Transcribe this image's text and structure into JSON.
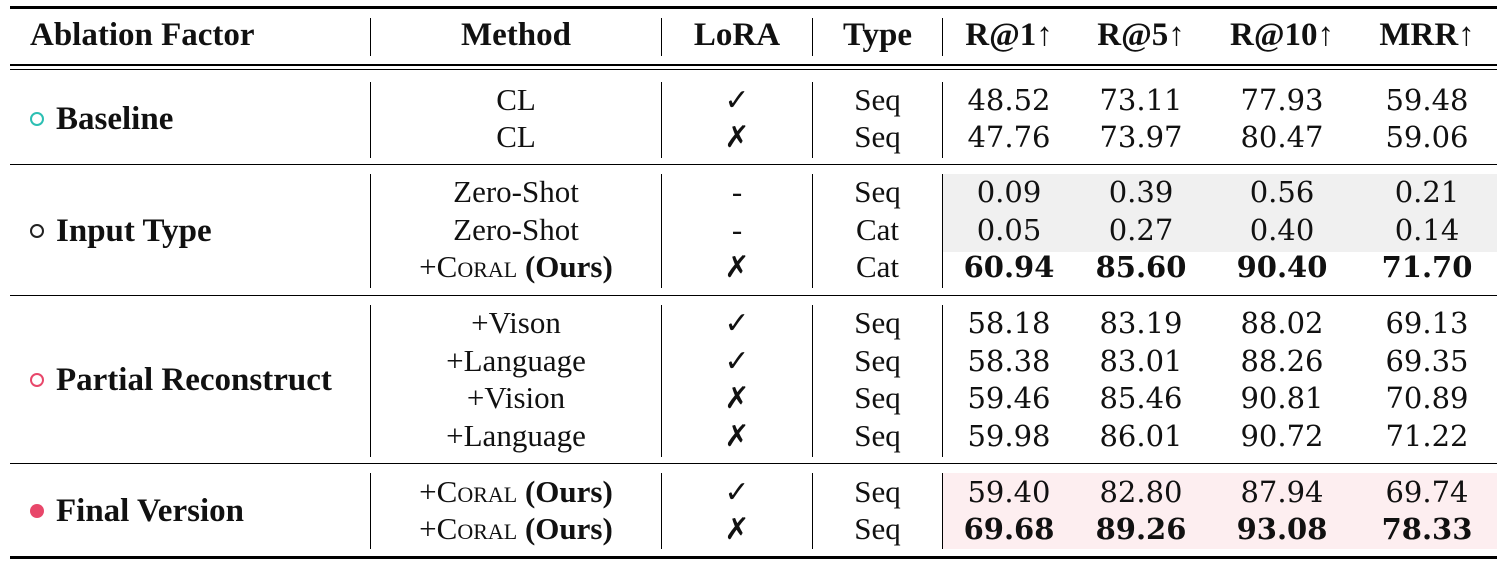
{
  "headers": {
    "factor": "Ablation Factor",
    "method": "Method",
    "lora": "LoRA",
    "type": "Type",
    "r1": "R@1↑",
    "r5": "R@5↑",
    "r10": "R@10↑",
    "mrr": "MRR↑"
  },
  "colors": {
    "baseline": "#2cbfb3",
    "input_type": "#222222",
    "partial": "#e8476a",
    "final": "#e8476a",
    "gray_shade": "#f0f0f0",
    "pink_shade": "#fdeef0"
  },
  "groups": [
    {
      "label": "Baseline",
      "bullet": "hollow",
      "color": "#2cbfb3",
      "rows": [
        {
          "method": "CL",
          "lora": "✓",
          "type": "Seq",
          "r1": "48.52",
          "r5": "73.11",
          "r10": "77.93",
          "mrr": "59.48"
        },
        {
          "method": "CL",
          "lora": "✗",
          "type": "Seq",
          "r1": "47.76",
          "r5": "73.97",
          "r10": "80.47",
          "mrr": "59.06"
        }
      ]
    },
    {
      "label": "Input Type",
      "bullet": "hollow",
      "color": "#222222",
      "rows": [
        {
          "method": "Zero-Shot",
          "lora": "-",
          "type": "Seq",
          "r1": "0.09",
          "r5": "0.39",
          "r10": "0.56",
          "mrr": "0.21"
        },
        {
          "method": "Zero-Shot",
          "lora": "-",
          "type": "Cat",
          "r1": "0.05",
          "r5": "0.27",
          "r10": "0.40",
          "mrr": "0.14"
        },
        {
          "method_prefix": "+",
          "method_sc": "Coral",
          "method_bold": "(Ours)",
          "lora": "✗",
          "type": "Cat",
          "r1": "60.94",
          "r5": "85.60",
          "r10": "90.40",
          "mrr": "71.70",
          "bold": true
        }
      ]
    },
    {
      "label": "Partial Reconstruct",
      "bullet": "hollow",
      "color": "#e8476a",
      "rows": [
        {
          "method": "+Vison",
          "lora": "✓",
          "type": "Seq",
          "r1": "58.18",
          "r5": "83.19",
          "r10": "88.02",
          "mrr": "69.13"
        },
        {
          "method": "+Language",
          "lora": "✓",
          "type": "Seq",
          "r1": "58.38",
          "r5": "83.01",
          "r10": "88.26",
          "mrr": "69.35"
        },
        {
          "method": "+Vision",
          "lora": "✗",
          "type": "Seq",
          "r1": "59.46",
          "r5": "85.46",
          "r10": "90.81",
          "mrr": "70.89"
        },
        {
          "method": "+Language",
          "lora": "✗",
          "type": "Seq",
          "r1": "59.98",
          "r5": "86.01",
          "r10": "90.72",
          "mrr": "71.22"
        }
      ]
    },
    {
      "label": "Final Version",
      "bullet": "filled",
      "color": "#e8476a",
      "rows": [
        {
          "method_prefix": "+",
          "method_sc": "Coral",
          "method_bold": "(Ours)",
          "lora": "✓",
          "type": "Seq",
          "r1": "59.40",
          "r5": "82.80",
          "r10": "87.94",
          "mrr": "69.74"
        },
        {
          "method_prefix": "+",
          "method_sc": "Coral",
          "method_bold": "(Ours)",
          "lora": "✗",
          "type": "Seq",
          "r1": "69.68",
          "r5": "89.26",
          "r10": "93.08",
          "mrr": "78.33",
          "bold": true
        }
      ]
    }
  ]
}
